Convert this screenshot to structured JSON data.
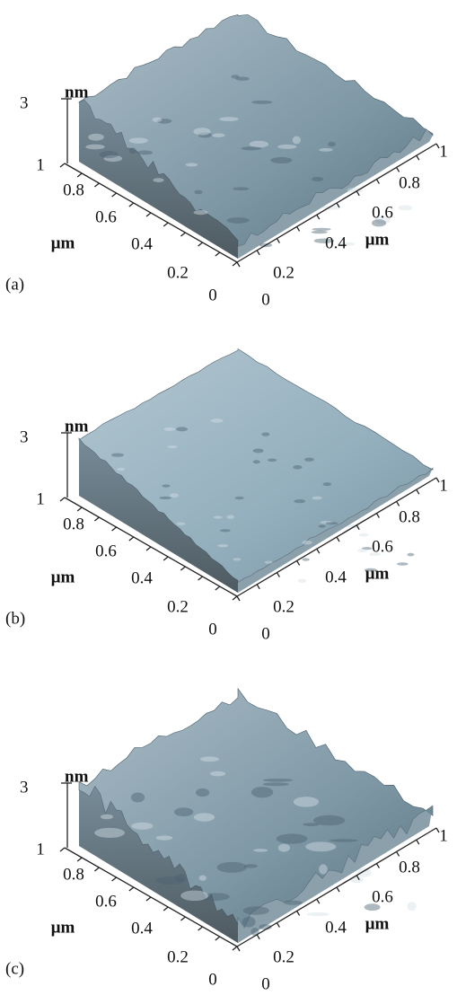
{
  "panels": [
    {
      "label": "(a)",
      "z_value": "3",
      "z_unit": "nm",
      "left_axis": {
        "ticks": [
          "1",
          "0.8",
          "0.6",
          "0.4",
          "0.2",
          "0"
        ],
        "unit": "µm"
      },
      "right_axis": {
        "ticks": [
          "0",
          "0.2",
          "0.4",
          "0.6",
          "0.8",
          "1"
        ],
        "unit": "µm"
      }
    },
    {
      "label": "(b)",
      "z_value": "3",
      "z_unit": "nm",
      "left_axis": {
        "ticks": [
          "1",
          "0.8",
          "0.6",
          "0.4",
          "0.2",
          "0"
        ],
        "unit": "µm"
      },
      "right_axis": {
        "ticks": [
          "0",
          "0.2",
          "0.4",
          "0.6",
          "0.8",
          "1"
        ],
        "unit": "µm"
      }
    },
    {
      "label": "(c)",
      "z_value": "3",
      "z_unit": "nm",
      "left_axis": {
        "ticks": [
          "1",
          "0.8",
          "0.6",
          "0.4",
          "0.2",
          "0"
        ],
        "unit": "µm"
      },
      "right_axis": {
        "ticks": [
          "0",
          "0.2",
          "0.4",
          "0.6",
          "0.8",
          "1"
        ],
        "unit": "µm"
      }
    }
  ]
}
